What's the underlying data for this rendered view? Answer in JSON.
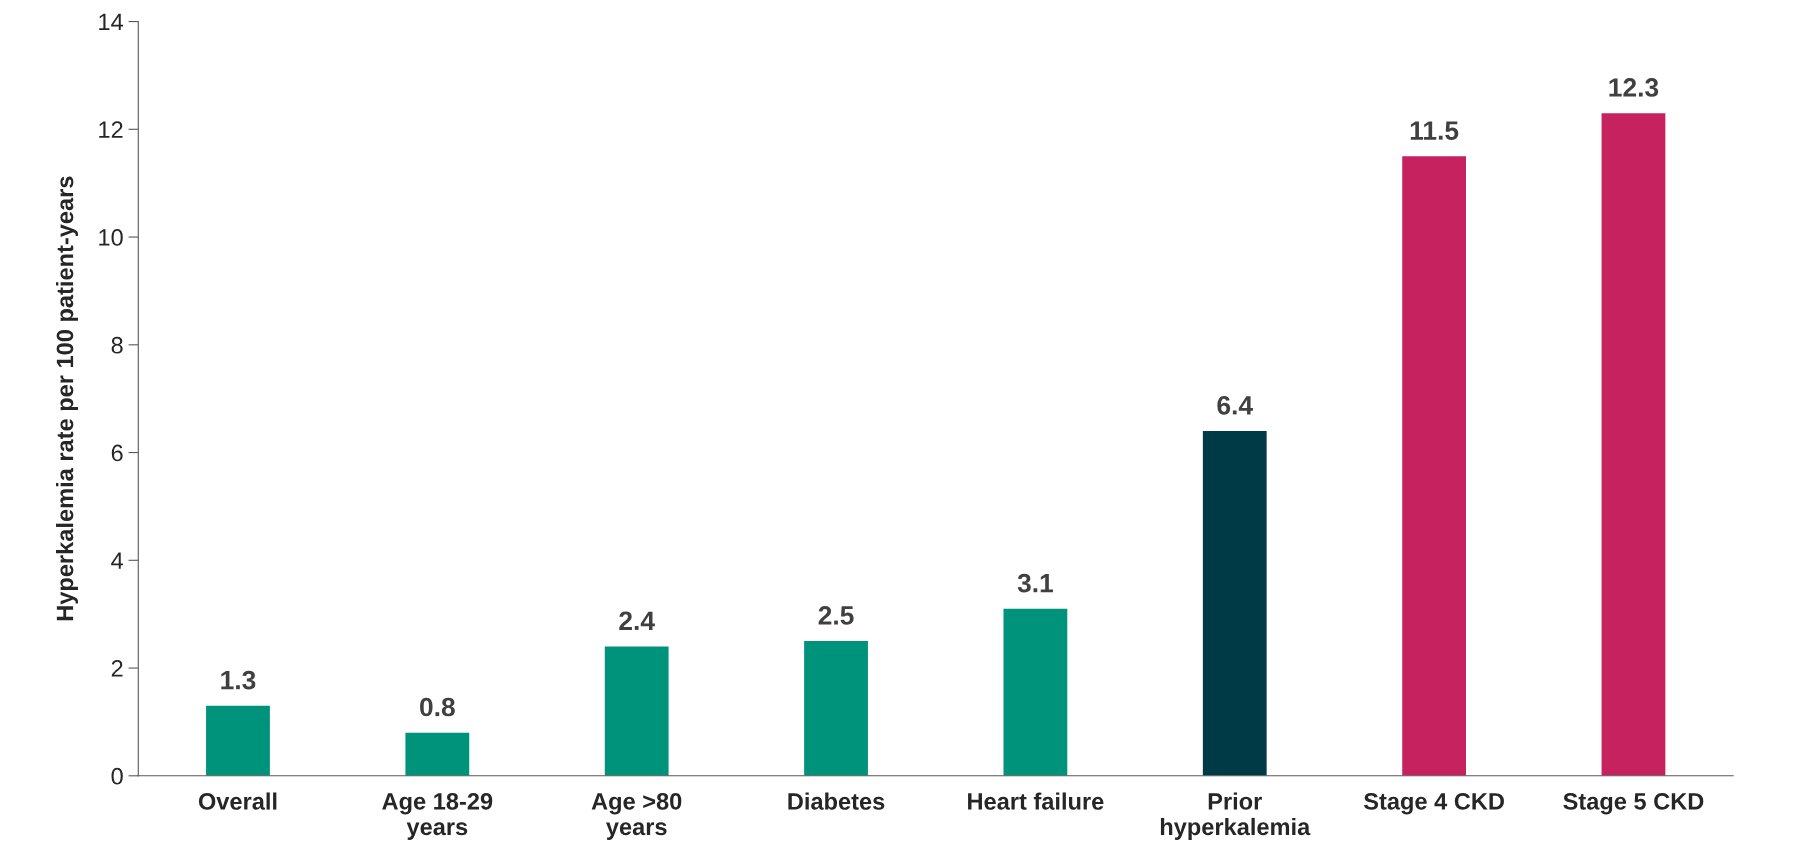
{
  "chart_data": {
    "type": "bar",
    "ylabel": "Hyperkalemia rate per 100 patient-years",
    "categories": [
      "Overall",
      "Age 18-29\nyears",
      "Age >80\nyears",
      "Diabetes",
      "Heart failure",
      "Prior\nhyperkalemia",
      "Stage 4 CKD",
      "Stage 5 CKD"
    ],
    "values": [
      1.3,
      0.8,
      2.4,
      2.5,
      3.1,
      6.4,
      11.5,
      12.3
    ],
    "colors": [
      "#00937b",
      "#00937b",
      "#00937b",
      "#00937b",
      "#00937b",
      "#003a47",
      "#c72260",
      "#c72260"
    ],
    "ylim": [
      0,
      14
    ],
    "yticks": [
      0,
      2,
      4,
      6,
      8,
      10,
      12,
      14
    ],
    "data_labels": true
  }
}
